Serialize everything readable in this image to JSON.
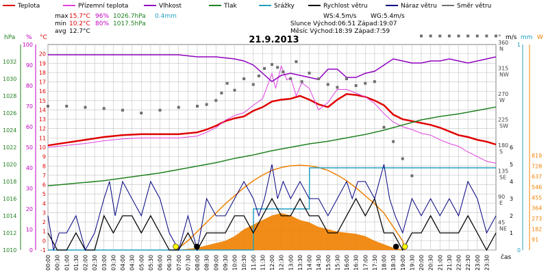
{
  "colors": {
    "temperature": "#e00000",
    "ground_temperature": "#e040e0",
    "humidity": "#9000c0",
    "pressure": "#208020",
    "precipitation": "#20a0c0",
    "wind_speed": "#000000",
    "wind_gust": "#000080",
    "wind_direction": "#707070",
    "sun": "#f08000",
    "grid": "#c0c0c0",
    "pressure_axis": "#208020",
    "percent_axis": "#c000c0",
    "temp_axis": "#e00000",
    "direction_axis": "#404040",
    "precip_axis": "#20a0c0",
    "solar_axis": "#f08000"
  },
  "legend": [
    {
      "key": "temperature",
      "label": "Teplota"
    },
    {
      "key": "ground_temperature",
      "label": "Přízemní teplota"
    },
    {
      "key": "humidity",
      "label": "Vlhkost"
    },
    {
      "key": "pressure",
      "label": "Tlak"
    },
    {
      "key": "precipitation",
      "label": "Srážky"
    },
    {
      "key": "wind_speed",
      "label": "Rychlost větru"
    },
    {
      "key": "wind_gust",
      "label": "Náraz větru"
    },
    {
      "key": "wind_direction",
      "label": "Směr větru"
    }
  ],
  "stats": {
    "max_label": "max",
    "max_temp": "15.7°C",
    "max_hum": "96%",
    "max_press": "1026.7hPa",
    "precip_total": "0.4mm",
    "min_label": "min",
    "min_temp": "10.2°C",
    "min_hum": "80%",
    "min_press": "1017.5hPa",
    "avg_label": "avg",
    "avg_temp": "12.7°C"
  },
  "info": {
    "wind_speed": "WS:4.5m/s",
    "wind_gust": "WG:5.4m/s",
    "sun": "Slunce Východ:06:51  Západ:19:07",
    "moon": "Měsíc  Východ:18:39  Západ:7:59"
  },
  "units": {
    "hpa": "hPa",
    "pct": "%",
    "degc": "°C",
    "deg": "°",
    "ms": "m/s",
    "mm": "mm",
    "w": "W"
  },
  "chart_data": {
    "type": "line",
    "title": "21.9.2013",
    "xlabel": "čas",
    "x_ticks": [
      "00:00",
      "00:30",
      "01:00",
      "01:30",
      "02:00",
      "02:30",
      "03:00",
      "03:30",
      "04:00",
      "04:30",
      "05:00",
      "05:30",
      "06:00",
      "06:30",
      "07:00",
      "07:30",
      "08:00",
      "08:30",
      "09:00",
      "09:30",
      "10:00",
      "10:30",
      "11:00",
      "11:30",
      "12:00",
      "12:30",
      "13:00",
      "13:30",
      "14:00",
      "14:30",
      "15:00",
      "15:30",
      "16:00",
      "16:30",
      "17:00",
      "17:30",
      "18:00",
      "18:30",
      "19:00",
      "19:30",
      "20:00",
      "20:30",
      "21:00",
      "21:30",
      "22:00",
      "22:30",
      "23:00",
      "23:30"
    ],
    "axes": {
      "pressure_hpa": {
        "range": [
          1010,
          1034
        ],
        "ticks": [
          "1010",
          "1012",
          "1014",
          "1016",
          "1018",
          "1020",
          "1022",
          "1024",
          "1026",
          "1028",
          "1030",
          "1032"
        ]
      },
      "humidity_pct": {
        "range": [
          0,
          100
        ],
        "ticks": [
          "0",
          "10",
          "20",
          "30",
          "40",
          "50",
          "60",
          "70",
          "80",
          "90",
          "100"
        ]
      },
      "temp_c": {
        "range": [
          -1,
          21
        ],
        "ticks": [
          "-1",
          "0",
          "1",
          "2",
          "3",
          "4",
          "5",
          "6",
          "7",
          "8",
          "9",
          "10",
          "11",
          "12",
          "13",
          "14",
          "15",
          "16",
          "17",
          "18",
          "19",
          "20"
        ]
      },
      "wind_dir_deg": {
        "range": [
          0,
          360
        ],
        "ticks": [
          "45 NE",
          "90 E",
          "135 SE",
          "180 S",
          "225 SW",
          "270 W",
          "315 NW",
          "360 N"
        ]
      },
      "wind_ms": {
        "range": [
          0,
          6
        ],
        "ticks": [
          "1",
          "2",
          "3",
          "4",
          "5",
          "6"
        ]
      },
      "precip_mm": {
        "range": [
          0,
          1
        ],
        "ticks": [
          "0",
          "1"
        ]
      },
      "solar_w": {
        "range": [
          0,
          819
        ],
        "ticks": [
          "91",
          "182",
          "273",
          "364",
          "455",
          "546",
          "637",
          "728",
          "819"
        ]
      }
    },
    "series": [
      {
        "name": "Teplota",
        "key": "temperature",
        "axis": "temp_c",
        "x": [
          0,
          1,
          2,
          3,
          4,
          5,
          6,
          7,
          8,
          8.5,
          9,
          9.5,
          10,
          10.5,
          11,
          11.5,
          12,
          12.5,
          13,
          13.5,
          14,
          14.5,
          15,
          15.5,
          16,
          16.5,
          17,
          17.5,
          18,
          18.5,
          19,
          19.5,
          20,
          20.5,
          21,
          21.5,
          22,
          22.5,
          23,
          23.5,
          24
        ],
        "y": [
          10.2,
          10.5,
          10.8,
          11.1,
          11.3,
          11.4,
          11.4,
          11.4,
          11.6,
          11.9,
          12.3,
          12.8,
          13.1,
          13.3,
          13.9,
          14.3,
          14.9,
          15.1,
          15.2,
          15.5,
          15.1,
          14.6,
          14.3,
          15.1,
          15.7,
          15.6,
          15.4,
          15.0,
          14.5,
          13.5,
          13.0,
          12.8,
          12.6,
          12.4,
          12.1,
          11.7,
          11.3,
          11.1,
          10.8,
          10.6,
          10.3
        ]
      },
      {
        "name": "Přízemní teplota",
        "key": "ground_temperature",
        "axis": "temp_c",
        "x": [
          0,
          1,
          2,
          3,
          4,
          5,
          6,
          7,
          8,
          8.5,
          9,
          9.5,
          10,
          10.5,
          11,
          11.5,
          11.8,
          12,
          12.2,
          12.5,
          12.8,
          13,
          13.3,
          13.6,
          14,
          14.5,
          15,
          15.5,
          16,
          16.5,
          17,
          17.5,
          18,
          18.5,
          19,
          19.5,
          20,
          20.5,
          21,
          21.5,
          22,
          22.5,
          23,
          23.5,
          24
        ],
        "y": [
          10.0,
          10.2,
          10.4,
          10.7,
          10.9,
          11.0,
          11.0,
          11.0,
          11.2,
          11.6,
          12.1,
          12.9,
          13.4,
          13.7,
          14.5,
          15.2,
          16.8,
          17.9,
          16.3,
          18.7,
          17.2,
          17.5,
          15.5,
          16.9,
          16.3,
          14.0,
          14.8,
          16.2,
          16.2,
          15.8,
          15.4,
          14.7,
          13.6,
          12.7,
          12.2,
          11.9,
          11.5,
          11.3,
          10.8,
          10.4,
          10.1,
          9.5,
          9.0,
          8.5,
          8.3
        ]
      },
      {
        "name": "Vlhkost",
        "key": "humidity",
        "axis": "humidity_pct",
        "x": [
          0,
          1,
          2,
          3,
          4,
          5,
          6,
          7,
          8,
          9,
          10,
          10.5,
          11,
          11.5,
          12,
          12.5,
          13,
          13.5,
          14,
          14.5,
          15,
          15.5,
          16,
          16.5,
          17,
          17.5,
          18,
          18.5,
          19,
          19.5,
          20,
          20.5,
          21,
          21.5,
          22,
          22.5,
          23,
          23.5,
          24
        ],
        "y": [
          95,
          95,
          95,
          95,
          95,
          95,
          95,
          95,
          94,
          94,
          93,
          92,
          90,
          86,
          82,
          85,
          86,
          85,
          84,
          83,
          88,
          88,
          84,
          84,
          86,
          87,
          90,
          93,
          92,
          91,
          91,
          92,
          92,
          93,
          92,
          91,
          92,
          93,
          94
        ]
      },
      {
        "name": "Tlak",
        "key": "pressure",
        "axis": "pressure_hpa",
        "x": [
          0,
          1,
          2,
          3,
          4,
          5,
          6,
          7,
          8,
          9,
          10,
          11,
          12,
          13,
          14,
          15,
          16,
          17,
          18,
          19,
          20,
          21,
          22,
          23,
          24
        ],
        "y": [
          1017.5,
          1017.7,
          1017.9,
          1018.1,
          1018.4,
          1018.7,
          1019.0,
          1019.4,
          1019.8,
          1020.2,
          1020.7,
          1021.1,
          1021.6,
          1022.0,
          1022.4,
          1022.7,
          1023.1,
          1023.5,
          1024.0,
          1024.6,
          1025.2,
          1025.6,
          1025.9,
          1026.3,
          1026.7
        ]
      },
      {
        "name": "Srážky",
        "key": "precipitation",
        "axis": "precip_mm",
        "x": [
          0,
          11.0,
          11.01,
          12.1,
          12.11,
          13.5,
          13.51,
          14.0,
          14.01,
          14.3,
          14.31,
          24
        ],
        "y": [
          0,
          0,
          0.2,
          0.2,
          0.2,
          0.2,
          0.2,
          0.2,
          0.4,
          0.4,
          0.4,
          0.4
        ]
      },
      {
        "name": "Rychlost větru",
        "key": "wind_speed",
        "axis": "wind_ms",
        "x": [
          0,
          0.5,
          1,
          1.5,
          2,
          2.5,
          3,
          3.5,
          4,
          4.5,
          5,
          5.5,
          6,
          6.5,
          7,
          7.5,
          8,
          8.5,
          9,
          9.5,
          10,
          10.5,
          11,
          11.5,
          12,
          12.5,
          13,
          13.5,
          14,
          14.5,
          15,
          15.5,
          16,
          16.5,
          17,
          17.5,
          18,
          18.5,
          19,
          19.5,
          20,
          20.5,
          21,
          21.5,
          22,
          22.5,
          23,
          23.5,
          24
        ],
        "y": [
          1,
          0,
          0,
          1,
          0,
          0,
          2,
          1,
          2,
          2,
          1,
          2,
          1,
          0,
          0,
          1,
          0,
          1,
          1,
          1,
          2,
          2,
          1,
          2,
          3,
          2,
          2,
          3,
          2,
          2,
          1,
          1,
          2,
          3,
          2,
          3,
          1,
          1,
          0,
          1,
          1,
          2,
          1,
          1,
          1,
          2,
          1,
          0,
          1
        ]
      },
      {
        "name": "Náraz větru",
        "key": "wind_gust",
        "axis": "wind_ms",
        "x": [
          0,
          0.3,
          0.6,
          1,
          1.5,
          2,
          2.5,
          3,
          3.3,
          3.6,
          4,
          4.5,
          5,
          5.5,
          6,
          6.5,
          7,
          7.5,
          8,
          8.5,
          9,
          9.5,
          10,
          10.5,
          11,
          11.3,
          11.6,
          12,
          12.3,
          12.6,
          13,
          13.5,
          14,
          14.5,
          15,
          15.5,
          16,
          16.3,
          16.6,
          17,
          17.5,
          18,
          18.3,
          18.6,
          19,
          19.5,
          20,
          20.5,
          21,
          21.5,
          22,
          22.5,
          23,
          23.5,
          24
        ],
        "y": [
          2,
          0,
          1,
          1,
          2,
          0,
          1,
          3,
          4,
          2,
          4,
          3,
          2,
          4,
          3,
          1,
          0,
          2,
          0,
          3,
          2,
          2,
          3,
          4,
          3,
          2,
          3,
          5,
          3,
          4,
          3,
          4,
          3,
          3,
          2,
          3,
          4,
          3,
          4,
          4,
          3,
          5,
          3,
          2,
          1,
          3,
          2,
          3,
          2,
          3,
          2,
          4,
          3,
          1,
          2
        ]
      },
      {
        "name": "Směr větru",
        "key": "wind_direction",
        "axis": "wind_dir_deg",
        "x": [
          0,
          1,
          2,
          3,
          4,
          5,
          6,
          7,
          8,
          8.5,
          9,
          9.3,
          9.6,
          10,
          10.5,
          11,
          11.3,
          11.6,
          12,
          12.3,
          12.6,
          13,
          13.3,
          13.6,
          14,
          14.5,
          15,
          15.5,
          16,
          16.5,
          17,
          17.5,
          18,
          18.5,
          19,
          19.5,
          20,
          20.5,
          21,
          21.5,
          22,
          22.5,
          23,
          23.5,
          24
        ],
        "y": [
          252,
          252,
          250,
          248,
          245,
          240,
          245,
          250,
          252,
          255,
          262,
          275,
          292,
          280,
          300,
          290,
          305,
          318,
          325,
          320,
          312,
          300,
          330,
          295,
          310,
          300,
          290,
          285,
          300,
          288,
          292,
          295,
          215,
          190,
          160,
          130,
          375,
          375,
          375,
          375,
          375,
          375,
          375,
          375,
          375
        ]
      }
    ],
    "solar": {
      "name": "Slunce",
      "key": "sun",
      "axis": "solar_w",
      "x": [
        6.85,
        7.5,
        8,
        8.5,
        9,
        9.5,
        10,
        10.5,
        11,
        11.5,
        12,
        12.5,
        13,
        13.5,
        14,
        14.5,
        15,
        15.5,
        16,
        16.5,
        17,
        17.5,
        18,
        18.5,
        19,
        19.12
      ],
      "theoretical": [
        0,
        80,
        160,
        240,
        320,
        400,
        470,
        540,
        600,
        650,
        690,
        715,
        730,
        735,
        730,
        715,
        690,
        650,
        600,
        540,
        470,
        400,
        320,
        200,
        80,
        0
      ],
      "measured": [
        0,
        10,
        20,
        40,
        60,
        80,
        120,
        180,
        220,
        260,
        300,
        320,
        300,
        260,
        240,
        200,
        180,
        160,
        150,
        140,
        120,
        80,
        50,
        20,
        5,
        0
      ]
    }
  }
}
